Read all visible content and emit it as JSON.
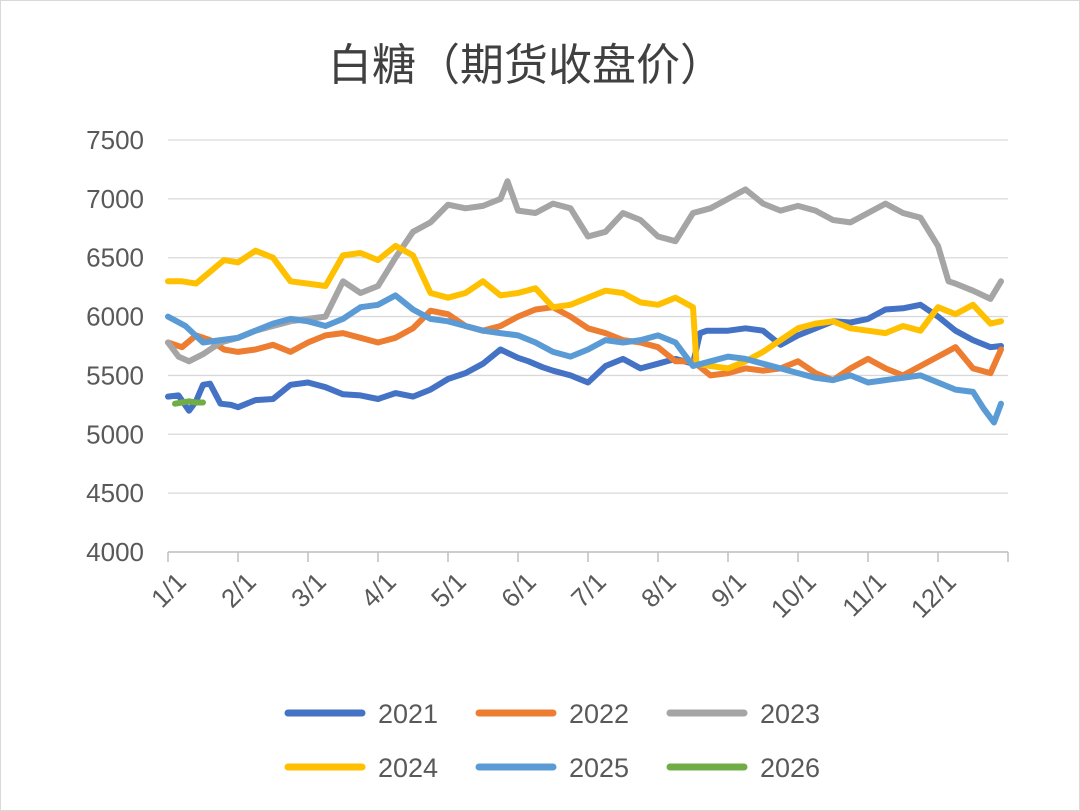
{
  "chart_data": {
    "type": "line",
    "title": "白糖（期货收盘价）",
    "xlabel": "",
    "ylabel": "",
    "ylim": [
      4000,
      7500
    ],
    "yticks": [
      4000,
      4500,
      5000,
      5500,
      6000,
      6500,
      7000,
      7500
    ],
    "xlim": [
      0,
      12
    ],
    "xtick_labels": [
      "1/1",
      "2/1",
      "3/1",
      "4/1",
      "5/1",
      "6/1",
      "7/1",
      "8/1",
      "9/1",
      "10/1",
      "11/1",
      "12/1"
    ],
    "grid": true,
    "legend_position": "bottom",
    "series": [
      {
        "name": "2021",
        "color": "#4472C4",
        "x": [
          0,
          0.15,
          0.3,
          0.4,
          0.5,
          0.6,
          0.75,
          0.9,
          1.0,
          1.25,
          1.5,
          1.75,
          2.0,
          2.25,
          2.5,
          2.75,
          3.0,
          3.25,
          3.5,
          3.75,
          4.0,
          4.25,
          4.5,
          4.75,
          5.0,
          5.15,
          5.35,
          5.5,
          5.75,
          6.0,
          6.25,
          6.5,
          6.75,
          7.0,
          7.25,
          7.5,
          7.6,
          7.7,
          8.0,
          8.25,
          8.5,
          8.75,
          9.0,
          9.25,
          9.5,
          9.75,
          10.0,
          10.25,
          10.5,
          10.75,
          11.0,
          11.25,
          11.5,
          11.75,
          11.9
        ],
        "values": [
          5320,
          5330,
          5200,
          5280,
          5420,
          5430,
          5260,
          5250,
          5230,
          5290,
          5300,
          5420,
          5440,
          5400,
          5340,
          5330,
          5300,
          5350,
          5320,
          5380,
          5470,
          5520,
          5600,
          5720,
          5650,
          5620,
          5570,
          5540,
          5500,
          5440,
          5580,
          5640,
          5560,
          5600,
          5640,
          5600,
          5860,
          5880,
          5880,
          5900,
          5880,
          5760,
          5840,
          5900,
          5960,
          5950,
          5980,
          6060,
          6070,
          6100,
          6000,
          5880,
          5800,
          5740,
          5750
        ]
      },
      {
        "name": "2022",
        "color": "#ED7D31",
        "x": [
          0,
          0.2,
          0.4,
          0.6,
          0.8,
          1.0,
          1.25,
          1.5,
          1.75,
          2.0,
          2.25,
          2.5,
          2.75,
          3.0,
          3.25,
          3.5,
          3.75,
          4.0,
          4.25,
          4.5,
          4.75,
          5.0,
          5.25,
          5.5,
          5.75,
          6.0,
          6.25,
          6.5,
          6.75,
          7.0,
          7.25,
          7.5,
          7.75,
          8.0,
          8.25,
          8.5,
          8.75,
          9.0,
          9.25,
          9.5,
          9.75,
          10.0,
          10.25,
          10.5,
          10.75,
          11.0,
          11.25,
          11.5,
          11.75,
          11.9
        ],
        "values": [
          5780,
          5740,
          5840,
          5800,
          5720,
          5700,
          5720,
          5760,
          5700,
          5780,
          5840,
          5860,
          5820,
          5780,
          5820,
          5900,
          6050,
          6020,
          5920,
          5880,
          5920,
          6000,
          6060,
          6080,
          6000,
          5900,
          5860,
          5800,
          5780,
          5740,
          5620,
          5620,
          5500,
          5520,
          5560,
          5540,
          5560,
          5620,
          5520,
          5460,
          5560,
          5640,
          5560,
          5500,
          5580,
          5660,
          5740,
          5560,
          5520,
          5720
        ]
      },
      {
        "name": "2023",
        "color": "#A5A5A5",
        "x": [
          0,
          0.15,
          0.3,
          0.5,
          0.75,
          1.0,
          1.25,
          1.5,
          1.75,
          2.0,
          2.25,
          2.5,
          2.75,
          3.0,
          3.25,
          3.5,
          3.75,
          4.0,
          4.25,
          4.5,
          4.75,
          4.85,
          5.0,
          5.25,
          5.5,
          5.75,
          6.0,
          6.25,
          6.5,
          6.75,
          7.0,
          7.25,
          7.5,
          7.75,
          8.0,
          8.25,
          8.5,
          8.75,
          9.0,
          9.25,
          9.5,
          9.75,
          10.0,
          10.25,
          10.5,
          10.75,
          11.0,
          11.15,
          11.25,
          11.5,
          11.75,
          11.9
        ],
        "values": [
          5780,
          5660,
          5620,
          5680,
          5780,
          5820,
          5880,
          5920,
          5960,
          5980,
          6000,
          6300,
          6200,
          6260,
          6500,
          6720,
          6800,
          6950,
          6920,
          6940,
          7000,
          7150,
          6900,
          6880,
          6960,
          6920,
          6680,
          6720,
          6880,
          6820,
          6680,
          6640,
          6880,
          6920,
          7000,
          7080,
          6960,
          6900,
          6940,
          6900,
          6820,
          6800,
          6880,
          6960,
          6880,
          6840,
          6600,
          6300,
          6280,
          6220,
          6150,
          6300
        ]
      },
      {
        "name": "2024",
        "color": "#FFC000",
        "x": [
          0,
          0.2,
          0.4,
          0.6,
          0.8,
          1.0,
          1.25,
          1.5,
          1.75,
          2.0,
          2.25,
          2.5,
          2.75,
          3.0,
          3.25,
          3.5,
          3.75,
          4.0,
          4.25,
          4.5,
          4.75,
          5.0,
          5.25,
          5.5,
          5.75,
          6.0,
          6.25,
          6.5,
          6.75,
          7.0,
          7.25,
          7.5,
          7.55,
          7.75,
          8.0,
          8.25,
          8.5,
          8.75,
          9.0,
          9.25,
          9.5,
          9.75,
          10.0,
          10.25,
          10.5,
          10.75,
          11.0,
          11.25,
          11.5,
          11.75,
          11.9
        ],
        "values": [
          6300,
          6300,
          6280,
          6380,
          6480,
          6460,
          6560,
          6500,
          6300,
          6280,
          6260,
          6520,
          6540,
          6480,
          6600,
          6520,
          6200,
          6160,
          6200,
          6300,
          6180,
          6200,
          6240,
          6080,
          6100,
          6160,
          6220,
          6200,
          6120,
          6100,
          6160,
          6080,
          5600,
          5580,
          5560,
          5620,
          5700,
          5800,
          5900,
          5940,
          5960,
          5900,
          5880,
          5860,
          5920,
          5880,
          6080,
          6020,
          6100,
          5940,
          5960
        ]
      },
      {
        "name": "2025",
        "color": "#5B9BD5",
        "x": [
          0,
          0.25,
          0.5,
          0.75,
          1.0,
          1.25,
          1.5,
          1.75,
          2.0,
          2.25,
          2.5,
          2.75,
          3.0,
          3.25,
          3.5,
          3.75,
          4.0,
          4.25,
          4.5,
          4.75,
          5.0,
          5.25,
          5.5,
          5.75,
          6.0,
          6.25,
          6.5,
          6.75,
          7.0,
          7.25,
          7.5,
          7.75,
          8.0,
          8.25,
          8.5,
          8.75,
          9.0,
          9.25,
          9.5,
          9.75,
          10.0,
          10.25,
          10.5,
          10.75,
          11.0,
          11.25,
          11.5,
          11.65,
          11.8,
          11.9
        ],
        "values": [
          6000,
          5920,
          5780,
          5800,
          5820,
          5880,
          5940,
          5980,
          5960,
          5920,
          5980,
          6080,
          6100,
          6180,
          6060,
          5980,
          5960,
          5920,
          5880,
          5860,
          5840,
          5780,
          5700,
          5660,
          5720,
          5800,
          5780,
          5800,
          5840,
          5780,
          5580,
          5620,
          5660,
          5640,
          5600,
          5560,
          5520,
          5480,
          5460,
          5500,
          5440,
          5460,
          5480,
          5500,
          5440,
          5380,
          5360,
          5220,
          5100,
          5260
        ]
      },
      {
        "name": "2026",
        "color": "#70AD47",
        "x": [
          0.1,
          0.2,
          0.3,
          0.4,
          0.5
        ],
        "values": [
          5260,
          5270,
          5280,
          5270,
          5270
        ]
      }
    ]
  }
}
